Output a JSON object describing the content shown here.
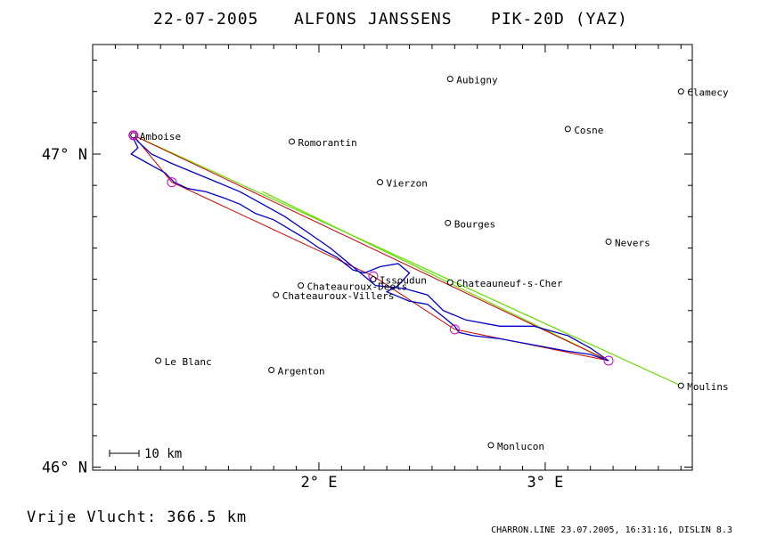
{
  "title": {
    "date": "22-07-2005",
    "pilot": "ALFONS JANSSENS",
    "glider": "PIK-20D (YAZ)"
  },
  "axes": {
    "lon_min": 1.0,
    "lon_max": 3.65,
    "lat_min": 45.99,
    "lat_max": 47.35,
    "y_ticks": [
      {
        "value": 47.0,
        "label": "47° N"
      },
      {
        "value": 46.0,
        "label": "46° N"
      }
    ],
    "x_ticks": [
      {
        "value": 2.0,
        "label": "2° E"
      },
      {
        "value": 3.0,
        "label": "3° E"
      }
    ]
  },
  "scale_bar": {
    "label": "10 km",
    "km": 10
  },
  "towns": [
    {
      "name": "Amboise",
      "lon": 1.18,
      "lat": 47.06,
      "marker": "circle-double"
    },
    {
      "name": "Aubigny",
      "lon": 2.58,
      "lat": 47.24
    },
    {
      "name": "Clamecy",
      "lon": 3.6,
      "lat": 47.2
    },
    {
      "name": "Cosne",
      "lon": 3.1,
      "lat": 47.08
    },
    {
      "name": "Romorantin",
      "lon": 1.88,
      "lat": 47.04
    },
    {
      "name": "Vierzon",
      "lon": 2.27,
      "lat": 46.91
    },
    {
      "name": "Bourges",
      "lon": 2.57,
      "lat": 46.78
    },
    {
      "name": "Nevers",
      "lon": 3.28,
      "lat": 46.72
    },
    {
      "name": "Issoudun",
      "lon": 2.24,
      "lat": 46.6
    },
    {
      "name": "Chateauneuf-s-Cher",
      "lon": 2.58,
      "lat": 46.59
    },
    {
      "name": "Chateauroux-Deols",
      "lon": 1.92,
      "lat": 46.58
    },
    {
      "name": "Chateauroux-Villers",
      "lon": 1.81,
      "lat": 46.55
    },
    {
      "name": "Le Blanc",
      "lon": 1.29,
      "lat": 46.34
    },
    {
      "name": "Argenton",
      "lon": 1.79,
      "lat": 46.31
    },
    {
      "name": "Moulins",
      "lon": 3.6,
      "lat": 46.26
    },
    {
      "name": "Monlucon",
      "lon": 2.76,
      "lat": 46.07
    }
  ],
  "task_turnpoints": [
    {
      "lon": 1.18,
      "lat": 47.06
    },
    {
      "lon": 1.35,
      "lat": 46.91
    },
    {
      "lon": 2.24,
      "lat": 46.61
    },
    {
      "lon": 2.6,
      "lat": 46.44
    },
    {
      "lon": 3.28,
      "lat": 46.34
    },
    {
      "lon": 1.18,
      "lat": 47.06
    }
  ],
  "green_lines": [
    [
      {
        "lon": 1.18,
        "lat": 47.06
      },
      {
        "lon": 3.6,
        "lat": 46.26
      }
    ],
    [
      {
        "lon": 1.75,
        "lat": 46.88
      },
      {
        "lon": 3.28,
        "lat": 46.34
      }
    ]
  ],
  "flight_track": [
    {
      "lon": 1.18,
      "lat": 47.05
    },
    {
      "lon": 1.2,
      "lat": 47.02
    },
    {
      "lon": 1.17,
      "lat": 47.0
    },
    {
      "lon": 1.22,
      "lat": 46.98
    },
    {
      "lon": 1.27,
      "lat": 46.96
    },
    {
      "lon": 1.32,
      "lat": 46.94
    },
    {
      "lon": 1.36,
      "lat": 46.91
    },
    {
      "lon": 1.42,
      "lat": 46.89
    },
    {
      "lon": 1.5,
      "lat": 46.88
    },
    {
      "lon": 1.58,
      "lat": 46.86
    },
    {
      "lon": 1.65,
      "lat": 46.84
    },
    {
      "lon": 1.72,
      "lat": 46.81
    },
    {
      "lon": 1.8,
      "lat": 46.79
    },
    {
      "lon": 1.87,
      "lat": 46.76
    },
    {
      "lon": 1.94,
      "lat": 46.73
    },
    {
      "lon": 2.0,
      "lat": 46.7
    },
    {
      "lon": 2.08,
      "lat": 46.67
    },
    {
      "lon": 2.15,
      "lat": 46.63
    },
    {
      "lon": 2.2,
      "lat": 46.62
    },
    {
      "lon": 2.27,
      "lat": 46.64
    },
    {
      "lon": 2.35,
      "lat": 46.65
    },
    {
      "lon": 2.4,
      "lat": 46.62
    },
    {
      "lon": 2.35,
      "lat": 46.58
    },
    {
      "lon": 2.3,
      "lat": 46.56
    },
    {
      "lon": 2.4,
      "lat": 46.53
    },
    {
      "lon": 2.48,
      "lat": 46.52
    },
    {
      "lon": 2.55,
      "lat": 46.48
    },
    {
      "lon": 2.6,
      "lat": 46.45
    },
    {
      "lon": 2.62,
      "lat": 46.43
    },
    {
      "lon": 2.68,
      "lat": 46.42
    },
    {
      "lon": 2.8,
      "lat": 46.41
    },
    {
      "lon": 2.95,
      "lat": 46.39
    },
    {
      "lon": 3.1,
      "lat": 46.37
    },
    {
      "lon": 3.2,
      "lat": 46.36
    },
    {
      "lon": 3.28,
      "lat": 46.34
    },
    {
      "lon": 3.2,
      "lat": 46.38
    },
    {
      "lon": 3.1,
      "lat": 46.42
    },
    {
      "lon": 2.95,
      "lat": 46.45
    },
    {
      "lon": 2.8,
      "lat": 46.45
    },
    {
      "lon": 2.65,
      "lat": 46.47
    },
    {
      "lon": 2.55,
      "lat": 46.5
    },
    {
      "lon": 2.48,
      "lat": 46.55
    },
    {
      "lon": 2.38,
      "lat": 46.57
    },
    {
      "lon": 2.25,
      "lat": 46.58
    },
    {
      "lon": 2.15,
      "lat": 46.64
    },
    {
      "lon": 2.05,
      "lat": 46.7
    },
    {
      "lon": 1.95,
      "lat": 46.75
    },
    {
      "lon": 1.85,
      "lat": 46.8
    },
    {
      "lon": 1.75,
      "lat": 46.84
    },
    {
      "lon": 1.65,
      "lat": 46.88
    },
    {
      "lon": 1.55,
      "lat": 46.91
    },
    {
      "lon": 1.45,
      "lat": 46.94
    },
    {
      "lon": 1.35,
      "lat": 46.97
    },
    {
      "lon": 1.26,
      "lat": 47.0
    },
    {
      "lon": 1.2,
      "lat": 47.04
    },
    {
      "lon": 1.18,
      "lat": 47.06
    }
  ],
  "footer": {
    "distance": "Vrije Vlucht:  366.5 km",
    "info": "CHARRON.LINE 23.07.2005, 16:31:16, DISLIN 8.3"
  },
  "colors": {
    "track": "#0000cc",
    "task": "#cc0000",
    "green": "#66dd00",
    "turnpoint": "#cc00cc",
    "frame": "#000000"
  }
}
